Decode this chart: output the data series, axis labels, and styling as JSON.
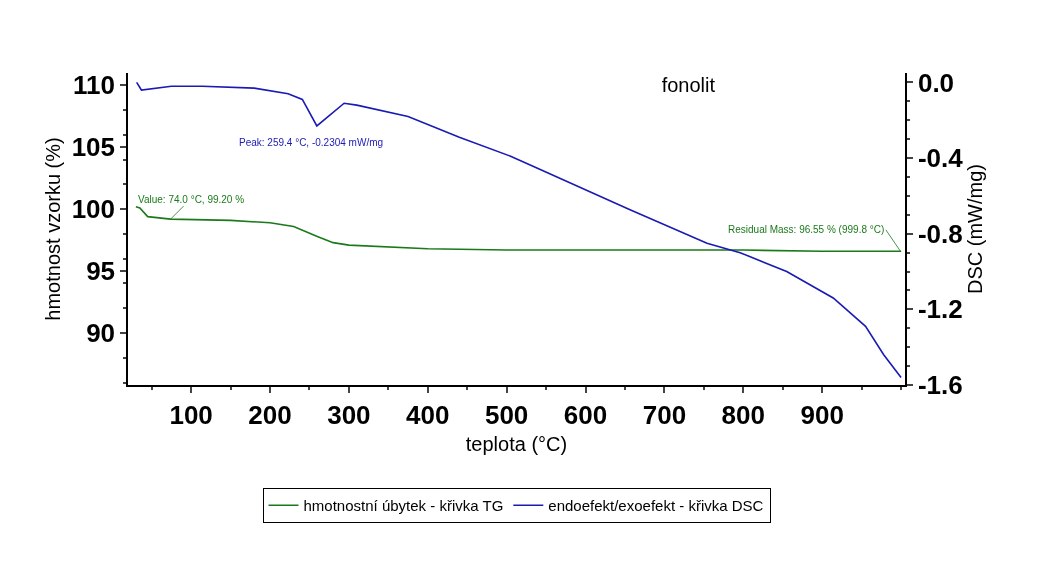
{
  "chart_data": {
    "type": "line",
    "title": "fonolit",
    "xlabel": "teplota (°C)",
    "ylabel": "hmotnost vzorku (%)",
    "y2label": "DSC (mW/mg)",
    "xlim": [
      20,
      1005
    ],
    "xticks": [
      100,
      200,
      300,
      400,
      500,
      600,
      700,
      800,
      900
    ],
    "ylim": [
      85.8,
      111
    ],
    "yticks": [
      90,
      95,
      100,
      105,
      110
    ],
    "y2lim": [
      -1.6,
      0.05
    ],
    "y2ticks": [
      {
        "value": 0,
        "label": "0.0"
      },
      -0.4,
      -0.8,
      -1.2,
      -1.6
    ],
    "legend": "bottom",
    "marker": "none",
    "line_style": "solid",
    "series": [
      {
        "name": "hmotnostní úbytek - křivka TG",
        "color": "#1a7a1a",
        "x": [
          30,
          35,
          45,
          74,
          150,
          200,
          230,
          260,
          280,
          300,
          400,
          500,
          600,
          700,
          800,
          900,
          1000
        ],
        "values": [
          100.2,
          100.1,
          99.4,
          99.2,
          99.1,
          98.9,
          98.6,
          97.8,
          97.3,
          97.1,
          96.8,
          96.7,
          96.7,
          96.7,
          96.7,
          96.6,
          96.6
        ]
      },
      {
        "name": "endoefekt/exoefekt - křivka DSC",
        "color": "#1a1ab4",
        "axis": "y2",
        "x": [
          31,
          37,
          75,
          114,
          180,
          223,
          241,
          259.4,
          294,
          310,
          375,
          440,
          505,
          532,
          655,
          754,
          796,
          855,
          914,
          955,
          978,
          1000
        ],
        "values": [
          0.0,
          -0.04,
          -0.02,
          -0.02,
          -0.03,
          -0.06,
          -0.09,
          -0.23,
          -0.11,
          -0.12,
          -0.18,
          -0.29,
          -0.39,
          -0.44,
          -0.67,
          -0.85,
          -0.9,
          -1.0,
          -1.14,
          -1.29,
          -1.44,
          -1.56
        ]
      }
    ],
    "annotations": [
      "Peak: 259.4 °C, -0.2304 mW/mg",
      {
        "text": "Value: 74.0 °C, 99.20 %",
        "x": 74.0,
        "y": 99.2
      },
      {
        "text": "Residual Mass: 96.55 % (999.8 °C)",
        "x": 999.8,
        "y": 96.55
      }
    ]
  }
}
